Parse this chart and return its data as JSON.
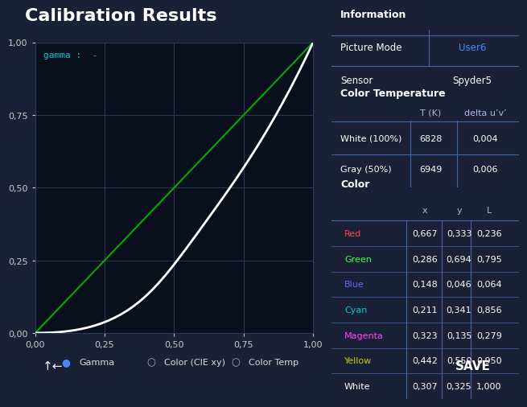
{
  "title": "Calibration Results",
  "bg_color": "#1a2035",
  "panel_bg": "#0d1525",
  "chart_bg": "#0a0f1e",
  "grid_color": "#2a3a5a",
  "title_color": "#ffffff",
  "gamma_label": "gamma :  -",
  "gamma_label_color": "#00cccc",
  "gamma_curve_color": "#ffffff",
  "diagonal_color": "#00aa00",
  "info_title": "Information",
  "info_picture_mode_label": "Picture Mode",
  "info_picture_mode_value": "User6",
  "info_picture_mode_color": "#4488ff",
  "info_sensor_label": "Sensor",
  "info_sensor_value": "Spyder5",
  "info_sensor_color": "#ffffff",
  "ct_title": "Color Temperature",
  "ct_headers": [
    "T (K)",
    "delta u’v’"
  ],
  "ct_rows": [
    [
      "White (100%)",
      "6828",
      "0,004"
    ],
    [
      "Gray (50%)",
      "6949",
      "0,006"
    ]
  ],
  "color_title": "Color",
  "color_headers": [
    "x",
    "y",
    "L"
  ],
  "color_rows": [
    [
      "Red",
      "#ff4444",
      "0,667",
      "0,333",
      "0,236"
    ],
    [
      "Green",
      "#44ff44",
      "0,286",
      "0,694",
      "0,795"
    ],
    [
      "Blue",
      "#6666ff",
      "0,148",
      "0,046",
      "0,064"
    ],
    [
      "Cyan",
      "#00cccc",
      "0,211",
      "0,341",
      "0,856"
    ],
    [
      "Magenta",
      "#ff44ff",
      "0,323",
      "0,135",
      "0,279"
    ],
    [
      "Yellow",
      "#cccc00",
      "0,442",
      "0,550",
      "0,950"
    ],
    [
      "White",
      "#ffffff",
      "0,307",
      "0,325",
      "1,000"
    ]
  ],
  "legend_items": [
    {
      "label": "Gamma",
      "color": "#4488ff",
      "filled": true
    },
    {
      "label": "Color (CIE xy)",
      "color": "#aaaaaa",
      "filled": false
    },
    {
      "label": "Color Temp",
      "color": "#aaaaaa",
      "filled": false
    }
  ],
  "xticks": [
    "0,00",
    "0,25",
    "0,50",
    "0,75",
    "1,00"
  ],
  "yticks": [
    "0,00",
    "0,25",
    "0,50",
    "0,75",
    "1,00"
  ],
  "box_edge_color": "#4466aa",
  "table_text_color": "#ffffff",
  "table_header_color": "#aabbdd"
}
